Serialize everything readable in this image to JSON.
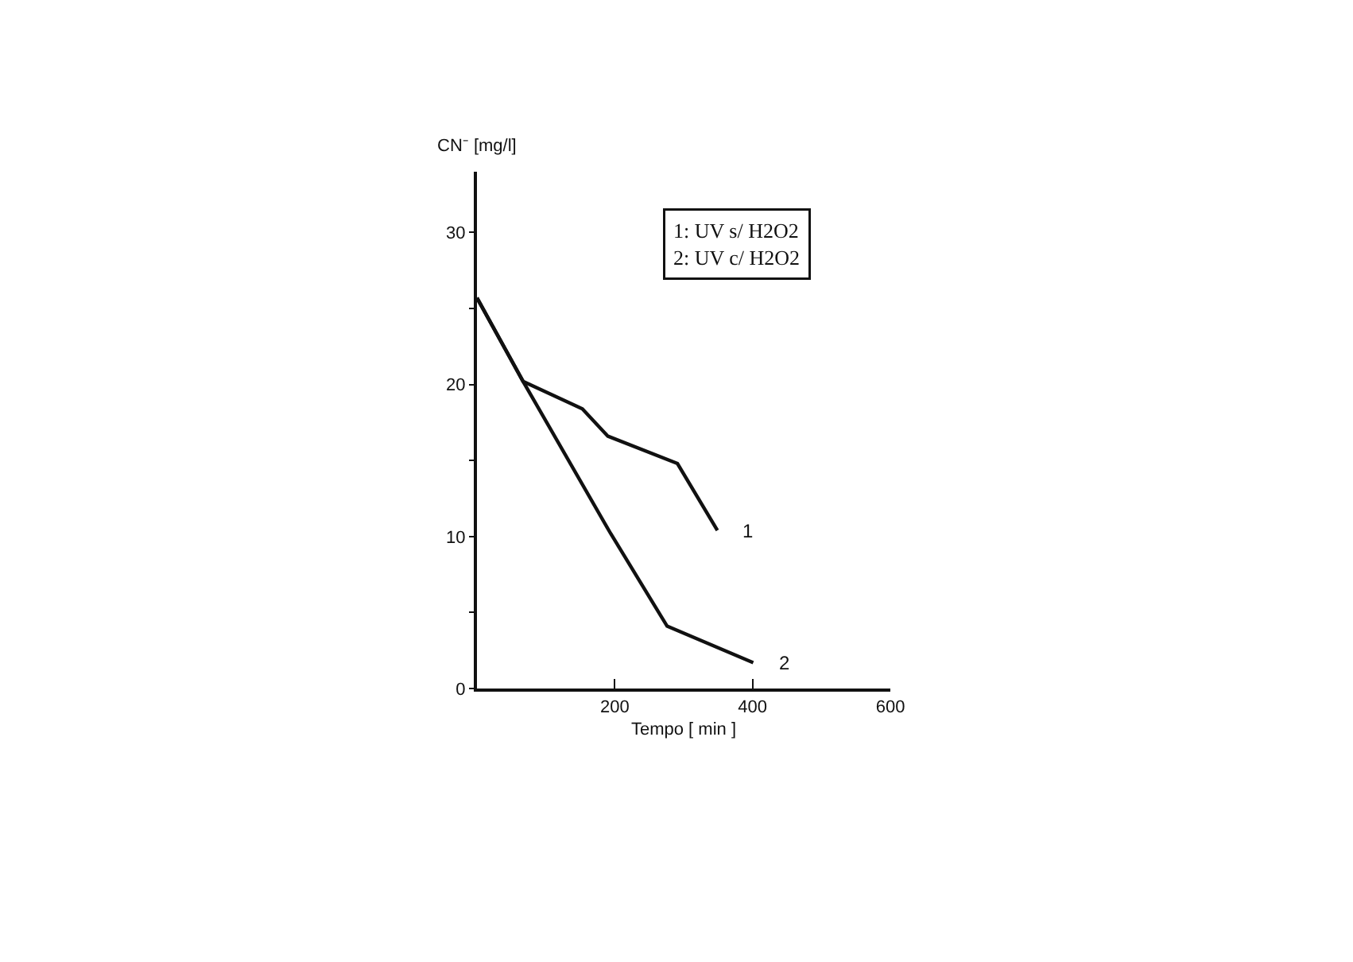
{
  "chart_data": {
    "type": "line",
    "xlabel": "Tempo [ min ]",
    "ylabel": "CN⁻ [mg/l]",
    "xlim": [
      0,
      600
    ],
    "xticks": [
      {
        "value": 0,
        "label": null
      },
      200,
      400,
      600
    ],
    "ylim": [
      0,
      34
    ],
    "yticks": [
      0,
      {
        "value": 5,
        "label": null
      },
      10,
      {
        "value": 15,
        "label": null
      },
      20,
      {
        "value": 25,
        "label": null
      },
      30
    ],
    "series": [
      {
        "name": "1",
        "color": "#111111",
        "x": [
          0,
          67,
          153,
          190,
          291,
          349
        ],
        "values": [
          25.7,
          20.2,
          18.4,
          16.6,
          14.8,
          10.4
        ]
      },
      {
        "name": "2",
        "color": "#111111",
        "x": [
          0,
          67,
          194,
          276,
          401
        ],
        "values": [
          25.7,
          20.2,
          10.2,
          4.1,
          1.7
        ]
      }
    ],
    "annotations": [
      "1: UV s/ H2O2",
      "2: UV c/ H2O2"
    ],
    "grid": false,
    "legend": false,
    "marker": "none",
    "line_style": "solid"
  }
}
